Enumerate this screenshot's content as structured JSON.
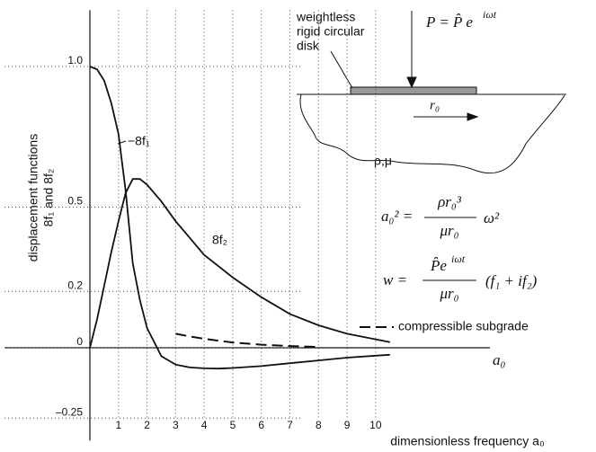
{
  "chart_data": {
    "type": "line",
    "ylabel": [
      "displacement functions",
      "8f₁ and 8f₂"
    ],
    "xlabel": "dimensionless frequency a₀",
    "x_axis_end_label": "a₀",
    "x": [
      0,
      0.25,
      0.5,
      0.75,
      1,
      1.25,
      1.5,
      1.75,
      2,
      2.5,
      3,
      3.5,
      4,
      4.5,
      5,
      6,
      7,
      8,
      9,
      10,
      10.5
    ],
    "series": [
      {
        "name": "−8f₁",
        "color": "#111111",
        "dash": false,
        "values": [
          1.0,
          0.99,
          0.95,
          0.87,
          0.76,
          0.56,
          0.3,
          0.17,
          0.07,
          -0.03,
          -0.06,
          -0.07,
          -0.073,
          -0.074,
          -0.072,
          -0.065,
          -0.055,
          -0.045,
          -0.035,
          -0.028,
          -0.025
        ]
      },
      {
        "name": "8f₂",
        "color": "#111111",
        "dash": false,
        "values": [
          0,
          0.1,
          0.22,
          0.34,
          0.45,
          0.55,
          0.6,
          0.6,
          0.58,
          0.52,
          0.45,
          0.39,
          0.33,
          0.29,
          0.25,
          0.18,
          0.12,
          0.08,
          0.05,
          0.03,
          0.02
        ]
      },
      {
        "name": "compressible subgrade",
        "color": "#111111",
        "dash": true,
        "values": [
          null,
          null,
          null,
          null,
          null,
          null,
          null,
          null,
          null,
          null,
          0.05,
          0.04,
          0.032,
          0.025,
          0.019,
          0.011,
          0.006,
          0.003,
          null,
          null,
          null
        ]
      }
    ],
    "xlim": [
      0,
      14
    ],
    "ylim": [
      -0.33,
      1.2
    ],
    "xticks": [
      1,
      2,
      3,
      4,
      5,
      6,
      7,
      8,
      9,
      10
    ],
    "yticks": [
      {
        "value": 1,
        "label": "1.0"
      },
      0.5,
      0.2,
      0,
      {
        "value": -0.25,
        "label": "–0.25"
      }
    ],
    "grid": true,
    "inset": {
      "disk_label": [
        "weightless",
        "rigid circular",
        "disk"
      ],
      "load": "P = P̂ e",
      "load_exp": "iωt",
      "radius": "r₀",
      "medium": "ρ,μ"
    },
    "equations": {
      "eq1": {
        "lhs": "a₀² =",
        "num": "ρr₀³",
        "den": "μr₀",
        "rhs": "ω²"
      },
      "eq2": {
        "lhs": "w =",
        "num": "P̂e",
        "num_exp": "iωt",
        "den": "μr₀",
        "rhs": "(f₁ + if₂)"
      }
    }
  }
}
